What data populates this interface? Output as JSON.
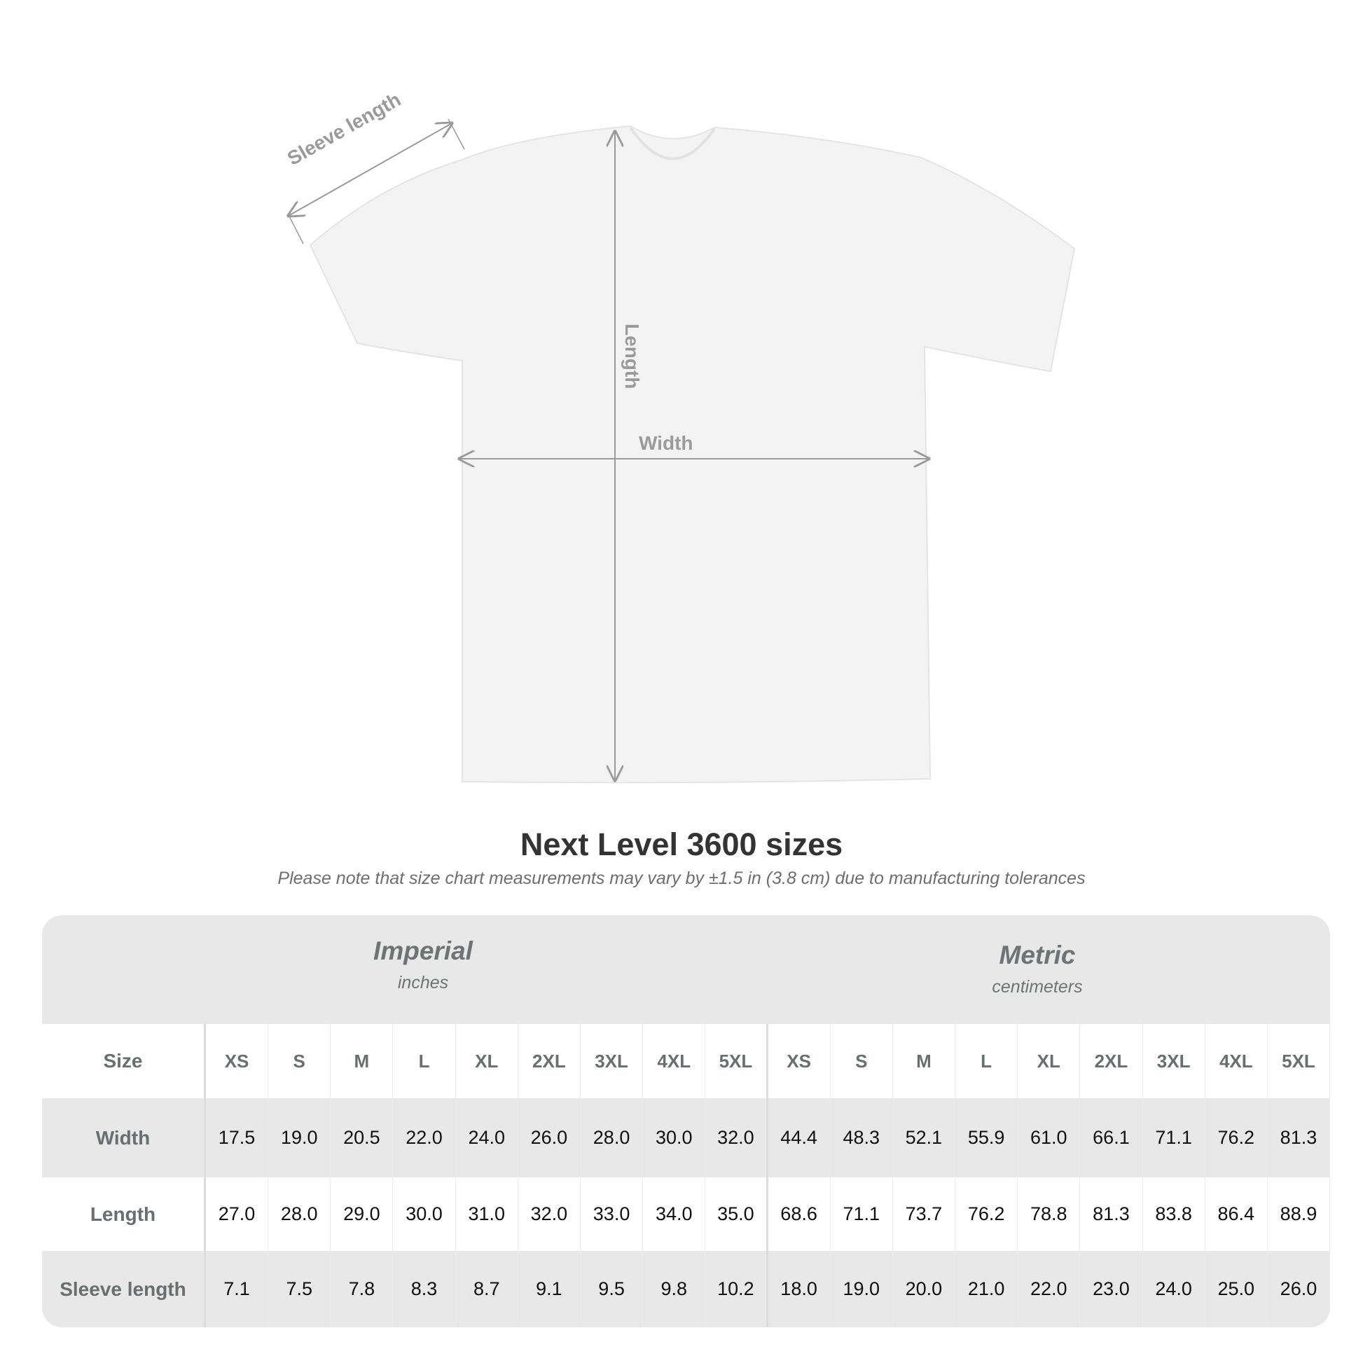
{
  "diagram": {
    "labels": {
      "sleeve": "Sleeve length",
      "length": "Length",
      "width": "Width"
    },
    "line_color": "#9a9a9a"
  },
  "title": "Next Level 3600 sizes",
  "subtitle": "Please note that size chart measurements may vary by ±1.5 in (3.8 cm) due to manufacturing tolerances",
  "table": {
    "imperial": {
      "name": "Imperial",
      "unit": "inches"
    },
    "metric": {
      "name": "Metric",
      "unit": "centimeters"
    },
    "size_label": "Size",
    "sizes": [
      "XS",
      "S",
      "M",
      "L",
      "XL",
      "2XL",
      "3XL",
      "4XL",
      "5XL"
    ],
    "rows": [
      {
        "label": "Width",
        "imperial": [
          "17.5",
          "19.0",
          "20.5",
          "22.0",
          "24.0",
          "26.0",
          "28.0",
          "30.0",
          "32.0"
        ],
        "metric": [
          "44.4",
          "48.3",
          "52.1",
          "55.9",
          "61.0",
          "66.1",
          "71.1",
          "76.2",
          "81.3"
        ]
      },
      {
        "label": "Length",
        "imperial": [
          "27.0",
          "28.0",
          "29.0",
          "30.0",
          "31.0",
          "32.0",
          "33.0",
          "34.0",
          "35.0"
        ],
        "metric": [
          "68.6",
          "71.1",
          "73.7",
          "76.2",
          "78.8",
          "81.3",
          "83.8",
          "86.4",
          "88.9"
        ]
      },
      {
        "label": "Sleeve length",
        "imperial": [
          "7.1",
          "7.5",
          "7.8",
          "8.3",
          "8.7",
          "9.1",
          "9.5",
          "9.8",
          "10.2"
        ],
        "metric": [
          "18.0",
          "19.0",
          "20.0",
          "21.0",
          "22.0",
          "23.0",
          "24.0",
          "25.0",
          "26.0"
        ]
      }
    ]
  }
}
